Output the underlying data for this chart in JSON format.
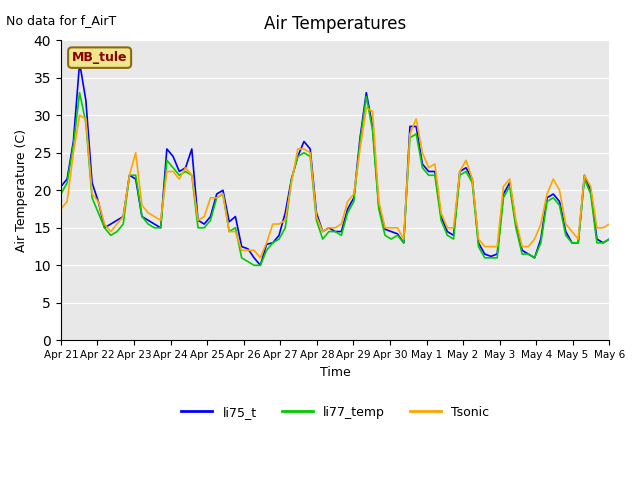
{
  "title": "Air Temperatures",
  "top_left_text": "No data for f_AirT",
  "xlabel": "Time",
  "ylabel": "Air Temperature (C)",
  "ylim": [
    0,
    40
  ],
  "yticks": [
    0,
    5,
    10,
    15,
    20,
    25,
    30,
    35,
    40
  ],
  "bg_color": "#e8e8e8",
  "annotation_box": "MB_tule",
  "annotation_box_bg": "#f0e68c",
  "annotation_box_text_color": "#8b0000",
  "series_colors": {
    "li75_t": "#0000ff",
    "li77_temp": "#00cc00",
    "Tsonic": "#ffa500"
  },
  "linewidth": 1.2,
  "x_days": [
    "Apr 21",
    "Apr 22",
    "Apr 23",
    "Apr 24",
    "Apr 25",
    "Apr 26",
    "Apr 27",
    "Apr 28",
    "Apr 29",
    "Apr 30",
    "May 1",
    "May 2",
    "May 3",
    "May 4",
    "May 5",
    "May 6"
  ],
  "li75_t": [
    20.5,
    21.5,
    26.5,
    37.0,
    32.0,
    21.0,
    18.5,
    15.0,
    15.5,
    16.0,
    16.5,
    22.0,
    21.5,
    16.5,
    16.0,
    15.5,
    15.0,
    25.5,
    24.5,
    22.5,
    23.0,
    25.5,
    16.0,
    15.5,
    16.5,
    19.5,
    20.0,
    15.8,
    16.5,
    12.5,
    12.2,
    11.0,
    10.0,
    12.8,
    13.0,
    14.0,
    17.0,
    21.5,
    24.5,
    26.5,
    25.5,
    17.0,
    14.5,
    15.0,
    14.5,
    14.5,
    17.5,
    19.0,
    27.0,
    33.0,
    28.5,
    18.0,
    14.8,
    14.5,
    14.2,
    13.0,
    28.5,
    28.5,
    23.5,
    22.5,
    22.5,
    16.5,
    14.5,
    14.0,
    22.5,
    23.0,
    21.5,
    13.0,
    11.5,
    11.2,
    11.5,
    19.5,
    21.0,
    15.5,
    12.0,
    11.5,
    11.0,
    13.5,
    19.0,
    19.5,
    18.5,
    14.5,
    13.0,
    13.0,
    22.0,
    20.0,
    13.5,
    13.0,
    13.5
  ],
  "li77_temp": [
    19.5,
    21.0,
    26.0,
    33.0,
    29.0,
    19.0,
    17.0,
    15.0,
    14.0,
    14.5,
    15.5,
    22.0,
    22.0,
    16.5,
    15.5,
    15.0,
    15.0,
    24.0,
    23.0,
    22.0,
    22.5,
    22.0,
    15.0,
    15.0,
    16.0,
    19.0,
    19.5,
    14.5,
    15.0,
    11.0,
    10.5,
    10.0,
    10.0,
    12.0,
    13.0,
    13.5,
    15.0,
    21.5,
    24.5,
    25.0,
    24.5,
    16.0,
    13.5,
    14.5,
    14.5,
    14.0,
    17.0,
    18.5,
    26.5,
    32.5,
    28.0,
    17.5,
    14.0,
    13.5,
    14.0,
    13.0,
    27.0,
    27.5,
    23.0,
    22.0,
    22.0,
    16.0,
    14.0,
    13.5,
    22.0,
    22.5,
    21.0,
    12.5,
    11.0,
    11.0,
    11.0,
    19.0,
    20.5,
    15.0,
    11.5,
    11.5,
    11.0,
    13.0,
    18.5,
    19.0,
    18.0,
    14.0,
    13.0,
    13.0,
    21.5,
    19.5,
    13.0,
    13.0,
    13.5
  ],
  "Tsonic": [
    17.5,
    18.5,
    25.0,
    30.0,
    29.5,
    19.5,
    18.5,
    15.5,
    14.5,
    15.5,
    16.5,
    22.0,
    25.0,
    18.0,
    17.0,
    16.5,
    16.0,
    22.5,
    22.5,
    21.5,
    23.0,
    22.0,
    16.0,
    16.5,
    19.0,
    19.0,
    19.5,
    14.5,
    14.5,
    12.0,
    12.0,
    12.0,
    11.0,
    13.0,
    15.5,
    15.5,
    16.0,
    21.0,
    25.5,
    25.5,
    25.0,
    16.5,
    14.5,
    15.0,
    15.0,
    15.5,
    18.5,
    19.5,
    25.5,
    31.0,
    30.5,
    18.5,
    15.0,
    15.0,
    15.0,
    13.5,
    27.5,
    29.5,
    25.0,
    23.0,
    23.5,
    17.0,
    15.0,
    15.0,
    22.5,
    24.0,
    21.5,
    13.5,
    12.5,
    12.5,
    12.5,
    20.5,
    21.5,
    16.0,
    12.5,
    12.5,
    13.5,
    15.5,
    19.5,
    21.5,
    20.0,
    15.5,
    14.5,
    13.5,
    22.0,
    20.5,
    15.0,
    15.0,
    15.5
  ]
}
